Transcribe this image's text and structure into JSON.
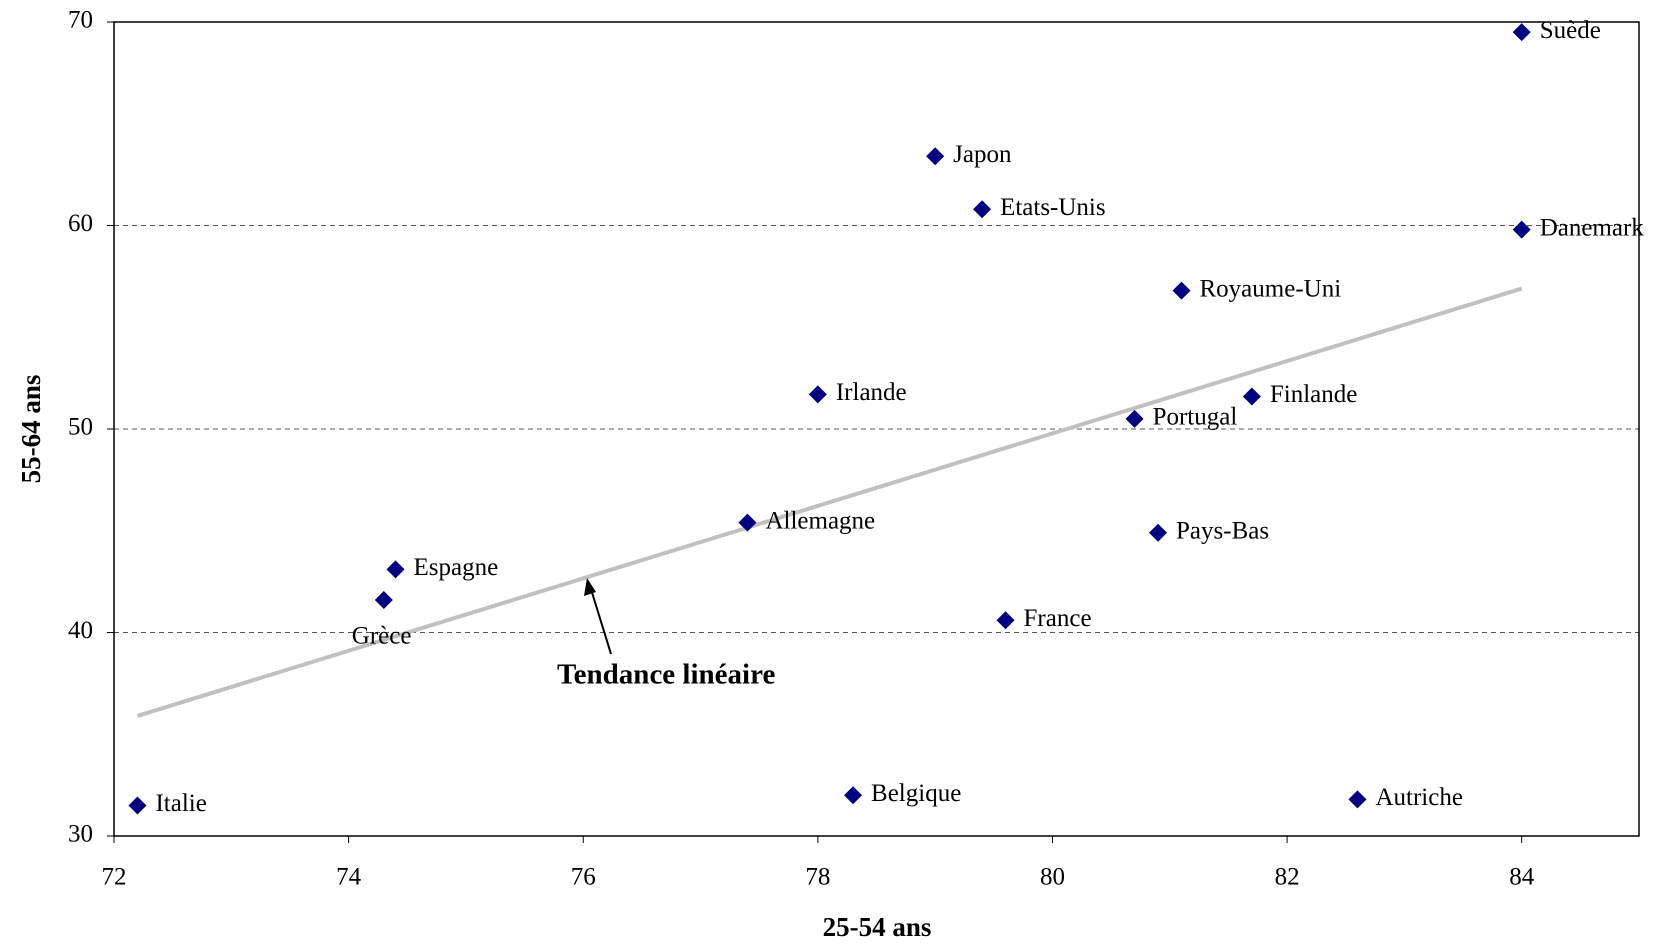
{
  "chart_data": {
    "type": "scatter",
    "x_label": "25-54 ans",
    "y_label": "55-64 ans",
    "xlim": [
      72,
      85
    ],
    "ylim": [
      30,
      70
    ],
    "xticks": [
      72,
      74,
      76,
      78,
      80,
      82,
      84
    ],
    "yticks": [
      30,
      40,
      50,
      60,
      70
    ],
    "grid": true,
    "labels": [
      "Italie",
      "Grèce",
      "Espagne",
      "Allemagne",
      "Irlande",
      "Belgique",
      "Japon",
      "Etats-Unis",
      "France",
      "Portugal",
      "Pays-Bas",
      "Royaume-Uni",
      "Finlande",
      "Autriche",
      "Danemark",
      "Suède"
    ],
    "x": [
      72.2,
      74.3,
      74.4,
      77.4,
      78.0,
      78.3,
      79.0,
      79.4,
      79.6,
      80.7,
      80.9,
      81.1,
      81.7,
      82.6,
      84.0,
      84.0
    ],
    "series": [
      {
        "color": "#000080",
        "values": [
          31.5,
          41.6,
          43.1,
          45.4,
          51.7,
          32.0,
          63.4,
          60.8,
          40.6,
          50.5,
          44.9,
          56.8,
          51.6,
          31.8,
          59.8,
          69.5
        ]
      }
    ],
    "trend": {
      "x": [
        72.2,
        84.0
      ],
      "y": [
        35.9,
        56.9
      ],
      "color": "#c0c0c0"
    },
    "annotation": "Tendance linéaire"
  }
}
